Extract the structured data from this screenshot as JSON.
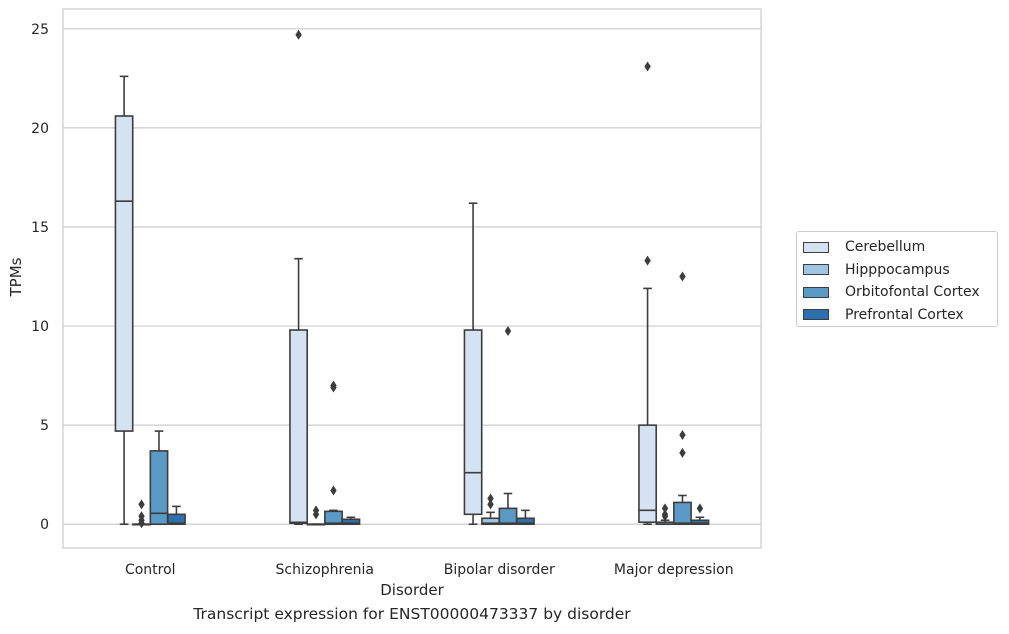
{
  "chart_data": {
    "type": "box",
    "xlabel": "Disorder",
    "ylabel": "TPMs",
    "ylim": [
      -1.2,
      26
    ],
    "yticks": [
      0,
      5,
      10,
      15,
      20,
      25
    ],
    "grid": "horizontal",
    "legend_position": "right",
    "categories": [
      "Control",
      "Schizophrenia",
      "Bipolar disorder",
      "Major depression"
    ],
    "series": [
      {
        "name": "Cerebellum",
        "color": "#d4e2f2",
        "boxes": [
          {
            "whislo": 0,
            "q1": 4.7,
            "med": 16.3,
            "q3": 20.6,
            "whishi": 22.6,
            "fliers": []
          },
          {
            "whislo": 0,
            "q1": 0.05,
            "med": 0.1,
            "q3": 9.8,
            "whishi": 13.4,
            "fliers": [
              24.7
            ]
          },
          {
            "whislo": 0,
            "q1": 0.5,
            "med": 2.6,
            "q3": 9.8,
            "whishi": 16.2,
            "fliers": []
          },
          {
            "whislo": 0,
            "q1": 0.1,
            "med": 0.7,
            "q3": 5.0,
            "whishi": 11.9,
            "fliers": [
              13.3,
              23.1
            ]
          }
        ]
      },
      {
        "name": "Hipppocampus",
        "color": "#9fc5e2",
        "boxes": [
          {
            "whislo": 0,
            "q1": 0,
            "med": 0,
            "q3": 0,
            "whishi": 0,
            "fliers": [
              0.05,
              0.2,
              0.4,
              1.0
            ]
          },
          {
            "whislo": 0,
            "q1": 0,
            "med": 0,
            "q3": 0,
            "whishi": 0,
            "fliers": [
              0.5,
              0.7
            ]
          },
          {
            "whislo": 0,
            "q1": 0,
            "med": 0.05,
            "q3": 0.3,
            "whishi": 0.6,
            "fliers": [
              1.0,
              1.3
            ]
          },
          {
            "whislo": 0,
            "q1": 0,
            "med": 0,
            "q3": 0.1,
            "whishi": 0.2,
            "fliers": [
              0.4,
              0.5,
              0.8
            ]
          }
        ]
      },
      {
        "name": "Orbitofontal Cortex",
        "color": "#5b9ac6",
        "boxes": [
          {
            "whislo": 0,
            "q1": 0,
            "med": 0.55,
            "q3": 3.7,
            "whishi": 4.7,
            "fliers": []
          },
          {
            "whislo": 0,
            "q1": 0,
            "med": 0.05,
            "q3": 0.65,
            "whishi": 0.7,
            "fliers": [
              1.7,
              6.9,
              7.0
            ]
          },
          {
            "whislo": 0,
            "q1": 0,
            "med": 0.05,
            "q3": 0.8,
            "whishi": 1.55,
            "fliers": [
              9.75
            ]
          },
          {
            "whislo": 0,
            "q1": 0,
            "med": 0.05,
            "q3": 1.1,
            "whishi": 1.45,
            "fliers": [
              3.6,
              4.5,
              12.5
            ]
          }
        ]
      },
      {
        "name": "Prefrontal Cortex",
        "color": "#2e6fad",
        "boxes": [
          {
            "whislo": 0,
            "q1": 0,
            "med": 0.05,
            "q3": 0.5,
            "whishi": 0.9,
            "fliers": []
          },
          {
            "whislo": 0,
            "q1": 0,
            "med": 0.05,
            "q3": 0.25,
            "whishi": 0.35,
            "fliers": []
          },
          {
            "whislo": 0,
            "q1": 0,
            "med": 0.05,
            "q3": 0.3,
            "whishi": 0.7,
            "fliers": []
          },
          {
            "whislo": 0,
            "q1": 0,
            "med": 0.05,
            "q3": 0.2,
            "whishi": 0.35,
            "fliers": [
              0.8
            ]
          }
        ]
      }
    ]
  },
  "caption": "Transcript expression for ENST00000473337 by disorder",
  "colors": {
    "edge": "#3d3d3d",
    "grid": "#cccccc",
    "spine": "#cccccc"
  }
}
